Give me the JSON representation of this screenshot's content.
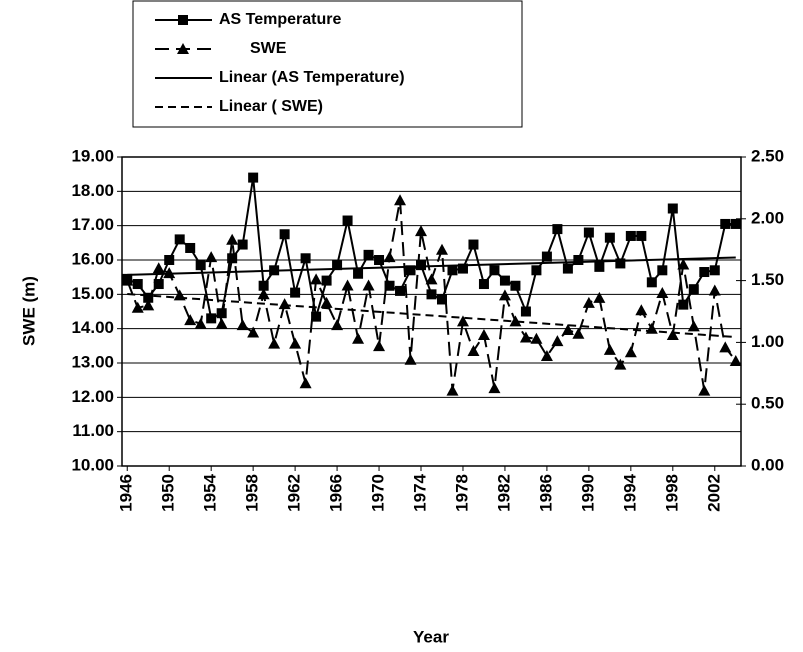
{
  "chart_data": {
    "type": "line",
    "x": [
      1946,
      1947,
      1948,
      1949,
      1950,
      1951,
      1952,
      1953,
      1954,
      1955,
      1956,
      1957,
      1958,
      1959,
      1960,
      1961,
      1962,
      1963,
      1964,
      1965,
      1966,
      1967,
      1968,
      1969,
      1970,
      1971,
      1972,
      1973,
      1974,
      1975,
      1976,
      1977,
      1978,
      1979,
      1980,
      1981,
      1982,
      1983,
      1984,
      1985,
      1986,
      1987,
      1988,
      1989,
      1990,
      1991,
      1992,
      1993,
      1994,
      1995,
      1996,
      1997,
      1998,
      1999,
      2000,
      2001,
      2002,
      2003,
      2004
    ],
    "series": [
      {
        "name": "AS Temperature",
        "color": "#000000",
        "marker": "square",
        "dashed": false,
        "trend_name": "Linear (AS Temperature)",
        "values": [
          15.45,
          15.3,
          14.9,
          15.3,
          16.0,
          16.6,
          16.35,
          15.85,
          14.3,
          14.45,
          16.05,
          16.45,
          18.4,
          15.25,
          15.7,
          16.75,
          15.05,
          16.05,
          14.35,
          15.4,
          15.85,
          17.15,
          15.6,
          16.15,
          16.0,
          15.25,
          15.1,
          15.7,
          15.85,
          15.0,
          14.85,
          15.7,
          15.75,
          16.45,
          15.3,
          15.7,
          15.4,
          15.25,
          14.5,
          15.7,
          16.1,
          16.9,
          15.75,
          16.0,
          16.8,
          15.8,
          16.65,
          15.9,
          16.7,
          16.7,
          15.35,
          15.7,
          17.5,
          14.7,
          15.15,
          15.65,
          15.7,
          17.05,
          17.05
        ]
      },
      {
        "name": "SWE",
        "color": "#000000",
        "marker": "triangle",
        "dashed": true,
        "axis": "y2",
        "trend_name": "Linear ( SWE)",
        "values": [
          1.5,
          1.28,
          1.3,
          1.6,
          1.56,
          1.38,
          1.18,
          1.15,
          1.69,
          1.15,
          1.83,
          1.14,
          1.08,
          1.39,
          0.99,
          1.31,
          0.99,
          0.67,
          1.51,
          1.32,
          1.14,
          1.46,
          1.03,
          1.46,
          0.97,
          1.69,
          2.15,
          0.86,
          1.9,
          1.51,
          1.75,
          0.61,
          1.17,
          0.93,
          1.06,
          0.63,
          1.38,
          1.17,
          1.04,
          1.03,
          0.89,
          1.01,
          1.1,
          1.07,
          1.32,
          1.36,
          0.94,
          0.82,
          0.92,
          1.26,
          1.11,
          1.4,
          1.06,
          1.63,
          1.13,
          0.61,
          1.42,
          0.96,
          0.85
        ]
      }
    ],
    "trendline": "linear",
    "xlabel": "Year",
    "ylabel": "SWE (m)",
    "xlim": [
      1945.5,
      2004.5
    ],
    "xticks": [
      1946,
      1950,
      1954,
      1958,
      1962,
      1966,
      1970,
      1974,
      1978,
      1982,
      1986,
      1990,
      1994,
      1998,
      2002
    ],
    "ylim": [
      10,
      19
    ],
    "yticks": [
      {
        "value": 10,
        "label": "10.00"
      },
      {
        "value": 11,
        "label": "11.00"
      },
      {
        "value": 12,
        "label": "12.00"
      },
      {
        "value": 13,
        "label": "13.00"
      },
      {
        "value": 14,
        "label": "14.00"
      },
      {
        "value": 15,
        "label": "15.00"
      },
      {
        "value": 16,
        "label": "16.00"
      },
      {
        "value": 17,
        "label": "17.00"
      },
      {
        "value": 18,
        "label": "18.00"
      },
      {
        "value": 19,
        "label": "19.00"
      }
    ],
    "y2lim": [
      0,
      2.5
    ],
    "y2ticks": [
      {
        "value": 0,
        "label": "0.00"
      },
      {
        "value": 0.5,
        "label": "0.50"
      },
      {
        "value": 1,
        "label": "1.00"
      },
      {
        "value": 1.5,
        "label": "1.50"
      },
      {
        "value": 2,
        "label": "2.00"
      },
      {
        "value": 2.5,
        "label": "2.50"
      }
    ],
    "grid": true
  }
}
